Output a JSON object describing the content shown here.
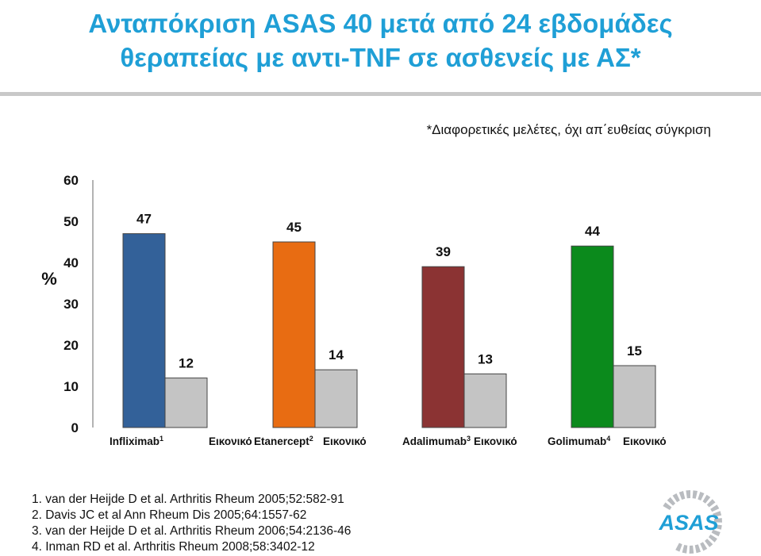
{
  "title": {
    "line1": "Ανταπόκριση ASAS 40 μετά από 24 εβδομάδες",
    "line2": "θεραπείας με αντι-TNF σε ασθενείς με ΑΣ*"
  },
  "note": "*Διαφορετικές μελέτες, όχι απ΄ευθείας σύγκριση",
  "chart_data": {
    "type": "bar",
    "ylabel": "%",
    "ylim": [
      0,
      60
    ],
    "yticks": [
      0,
      10,
      20,
      30,
      40,
      50,
      60
    ],
    "grid": false,
    "groups": [
      {
        "drug": "Infliximab",
        "sup": "1",
        "placebo_label": "Εικονικό",
        "drug_value": 47,
        "placebo_value": 12,
        "color": "#336199"
      },
      {
        "drug": "Etanercept",
        "sup": "2",
        "placebo_label": "Εικονικό",
        "drug_value": 45,
        "placebo_value": 14,
        "color": "#e86c12"
      },
      {
        "drug": "Adalimumab",
        "sup": "3",
        "placebo_label": "Εικονικό",
        "drug_value": 39,
        "placebo_value": 13,
        "color": "#8b3333"
      },
      {
        "drug": "Golimumab",
        "sup": "4",
        "placebo_label": "Εικονικό",
        "drug_value": 44,
        "placebo_value": 15,
        "color": "#0b8a1c"
      }
    ],
    "placebo_color": "#c4c4c4"
  },
  "references": [
    "1. van der Heijde D et al. Arthritis Rheum 2005;52:582-91",
    "2. Davis JC et al Ann Rheum Dis 2005;64:1557-62",
    "3. van der Heijde D et al. Arthritis Rheum 2006;54:2136-46",
    "4. Inman RD et al. Arthritis Rheum 2008;58:3402-12"
  ],
  "logo": {
    "text": "ASAS",
    "color": "#1f9fd6"
  }
}
